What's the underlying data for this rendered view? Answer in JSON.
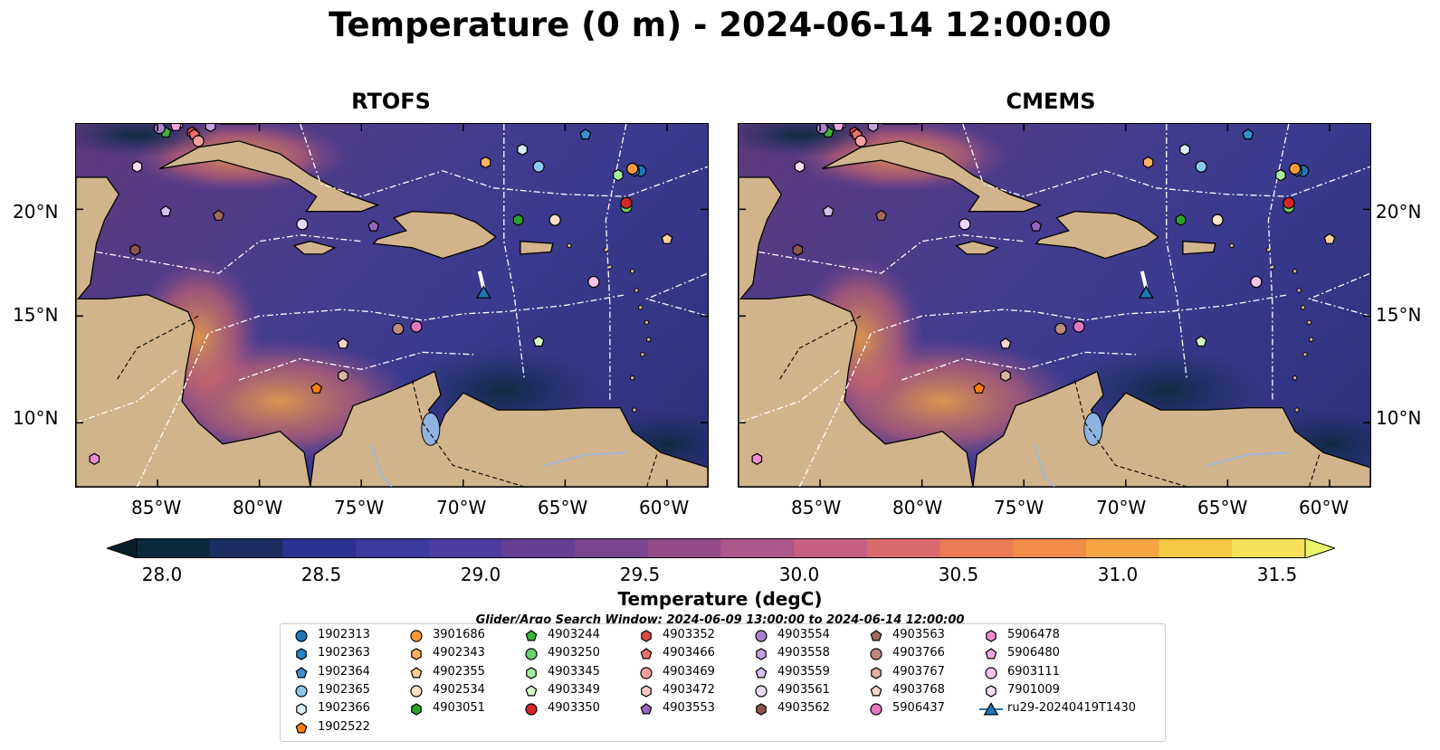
{
  "title": "Temperature (0 m) - 2024-06-14 12:00:00",
  "panels": [
    {
      "title": "RTOFS"
    },
    {
      "title": "CMEMS"
    }
  ],
  "axes": {
    "lon_labels": [
      "85°W",
      "80°W",
      "75°W",
      "70°W",
      "65°W",
      "60°W"
    ],
    "lat_labels": [
      "20°N",
      "15°N",
      "10°N"
    ],
    "lon_range": [
      -89,
      -58
    ],
    "lat_range": [
      7,
      24
    ]
  },
  "colorbar": {
    "label": "Temperature (degC)",
    "ticks": [
      "28.0",
      "28.5",
      "29.0",
      "29.5",
      "30.0",
      "30.5",
      "31.0",
      "31.5"
    ],
    "range": [
      28.0,
      31.5
    ],
    "colors": [
      "#0b2a3c",
      "#1c2d62",
      "#2d3191",
      "#3d3a9d",
      "#4e3d9e",
      "#643f95",
      "#7b4590",
      "#944c8c",
      "#ac568a",
      "#c55f83",
      "#db6a6c",
      "#eb7a55",
      "#f28c48",
      "#f6a543",
      "#f6c844",
      "#f5e25a"
    ],
    "over_color": "#eaf56c",
    "under_color": "#061d2a"
  },
  "search_window": "Glider/Argo Search Window: 2024-06-09 13:00:00 to 2024-06-14 12:00:00",
  "legend": [
    {
      "label": "1902313",
      "color": "#1f77b4",
      "marker": "circle"
    },
    {
      "label": "1902363",
      "color": "#2a83c4",
      "marker": "hexagon"
    },
    {
      "label": "1902364",
      "color": "#3a8fd0",
      "marker": "pentagon"
    },
    {
      "label": "1902365",
      "color": "#8ec5ee",
      "marker": "circle"
    },
    {
      "label": "1902366",
      "color": "#d8eefb",
      "marker": "hexagon"
    },
    {
      "label": "1902522",
      "color": "#ff7f0e",
      "marker": "pentagon"
    },
    {
      "label": "3901686",
      "color": "#ff9a3c",
      "marker": "circle"
    },
    {
      "label": "4902343",
      "color": "#ffb060",
      "marker": "hexagon"
    },
    {
      "label": "4902355",
      "color": "#ffcf9a",
      "marker": "pentagon"
    },
    {
      "label": "4902534",
      "color": "#ffe0c4",
      "marker": "circle"
    },
    {
      "label": "4903051",
      "color": "#2ca02c",
      "marker": "hexagon"
    },
    {
      "label": "4903244",
      "color": "#3cb43c",
      "marker": "pentagon"
    },
    {
      "label": "4903250",
      "color": "#6cd06c",
      "marker": "circle"
    },
    {
      "label": "4903345",
      "color": "#a8eea0",
      "marker": "hexagon"
    },
    {
      "label": "4903349",
      "color": "#d2f8c8",
      "marker": "pentagon"
    },
    {
      "label": "4903350",
      "color": "#d62728",
      "marker": "circle"
    },
    {
      "label": "4903352",
      "color": "#e04848",
      "marker": "hexagon"
    },
    {
      "label": "4903466",
      "color": "#ee7070",
      "marker": "pentagon"
    },
    {
      "label": "4903469",
      "color": "#f4a0a0",
      "marker": "circle"
    },
    {
      "label": "4903472",
      "color": "#fccaca",
      "marker": "hexagon"
    },
    {
      "label": "4903553",
      "color": "#9467bd",
      "marker": "pentagon"
    },
    {
      "label": "4903554",
      "color": "#a882cc",
      "marker": "circle"
    },
    {
      "label": "4903558",
      "color": "#c2a2e0",
      "marker": "hexagon"
    },
    {
      "label": "4903559",
      "color": "#d6c0f0",
      "marker": "pentagon"
    },
    {
      "label": "4903561",
      "color": "#ead8fa",
      "marker": "circle"
    },
    {
      "label": "4903562",
      "color": "#8c564b",
      "marker": "hexagon"
    },
    {
      "label": "4903563",
      "color": "#a06c60",
      "marker": "pentagon"
    },
    {
      "label": "4903766",
      "color": "#bc8a7e",
      "marker": "circle"
    },
    {
      "label": "4903767",
      "color": "#dcb2a6",
      "marker": "hexagon"
    },
    {
      "label": "4903768",
      "color": "#f4d6c8",
      "marker": "pentagon"
    },
    {
      "label": "5906437",
      "color": "#e377c2",
      "marker": "circle"
    },
    {
      "label": "5906478",
      "color": "#ea8ed0",
      "marker": "hexagon"
    },
    {
      "label": "5906480",
      "color": "#f2a8de",
      "marker": "pentagon"
    },
    {
      "label": "6903111",
      "color": "#f6c2e8",
      "marker": "circle"
    },
    {
      "label": "7901009",
      "color": "#fadcf2",
      "marker": "hexagon"
    },
    {
      "label": "ru29-20240419T1430",
      "color": "#1f77b4",
      "marker": "triangle-line"
    }
  ],
  "floats": [
    {
      "id": "1902313",
      "lon": -61.3,
      "lat": 21.8
    },
    {
      "id": "1902363",
      "lon": -61.6,
      "lat": 21.8
    },
    {
      "id": "1902364",
      "lon": -64.0,
      "lat": 23.5
    },
    {
      "id": "1902365",
      "lon": -66.3,
      "lat": 22.0
    },
    {
      "id": "1902366",
      "lon": -67.1,
      "lat": 22.8
    },
    {
      "id": "1902522",
      "lon": -77.2,
      "lat": 11.6
    },
    {
      "id": "3901686",
      "lon": -61.7,
      "lat": 21.9
    },
    {
      "id": "4902343",
      "lon": -68.9,
      "lat": 22.2
    },
    {
      "id": "4902355",
      "lon": -60.0,
      "lat": 18.6
    },
    {
      "id": "4902534",
      "lon": -65.5,
      "lat": 19.5
    },
    {
      "id": "4903051",
      "lon": -67.3,
      "lat": 19.5
    },
    {
      "id": "4903244",
      "lon": -84.6,
      "lat": 23.6
    },
    {
      "id": "4903250",
      "lon": -62.0,
      "lat": 20.1
    },
    {
      "id": "4903345",
      "lon": -62.4,
      "lat": 21.6
    },
    {
      "id": "4903349",
      "lon": -66.3,
      "lat": 13.8
    },
    {
      "id": "4903350",
      "lon": -62.0,
      "lat": 20.3
    },
    {
      "id": "4903352",
      "lon": -83.3,
      "lat": 23.6
    },
    {
      "id": "4903466",
      "lon": -83.2,
      "lat": 23.5
    },
    {
      "id": "4903469",
      "lon": -83.0,
      "lat": 23.2
    },
    {
      "id": "4903472",
      "lon": -84.0,
      "lat": 24.0
    },
    {
      "id": "4903553",
      "lon": -74.4,
      "lat": 19.2
    },
    {
      "id": "4903554",
      "lon": -84.9,
      "lat": 23.8
    },
    {
      "id": "4903558",
      "lon": -82.4,
      "lat": 23.9
    },
    {
      "id": "4903559",
      "lon": -84.6,
      "lat": 19.9
    },
    {
      "id": "4903561",
      "lon": -77.9,
      "lat": 19.3
    },
    {
      "id": "4903562",
      "lon": -86.1,
      "lat": 18.1
    },
    {
      "id": "4903563",
      "lon": -82.0,
      "lat": 19.7
    },
    {
      "id": "4903766",
      "lon": -73.2,
      "lat": 14.4
    },
    {
      "id": "4903767",
      "lon": -75.9,
      "lat": 12.2
    },
    {
      "id": "4903768",
      "lon": -75.9,
      "lat": 13.7
    },
    {
      "id": "5906437",
      "lon": -72.3,
      "lat": 14.5
    },
    {
      "id": "5906478",
      "lon": -88.1,
      "lat": 8.3
    },
    {
      "id": "5906480",
      "lon": -84.1,
      "lat": 23.9
    },
    {
      "id": "6903111",
      "lon": -63.6,
      "lat": 16.6
    },
    {
      "id": "7901009",
      "lon": -86.0,
      "lat": 22.0
    }
  ],
  "glider": {
    "id": "ru29-20240419T1430",
    "lon": -69.0,
    "lat": 16.1,
    "track": [
      [
        -69.2,
        17.1
      ],
      [
        -69.0,
        16.3
      ]
    ]
  }
}
